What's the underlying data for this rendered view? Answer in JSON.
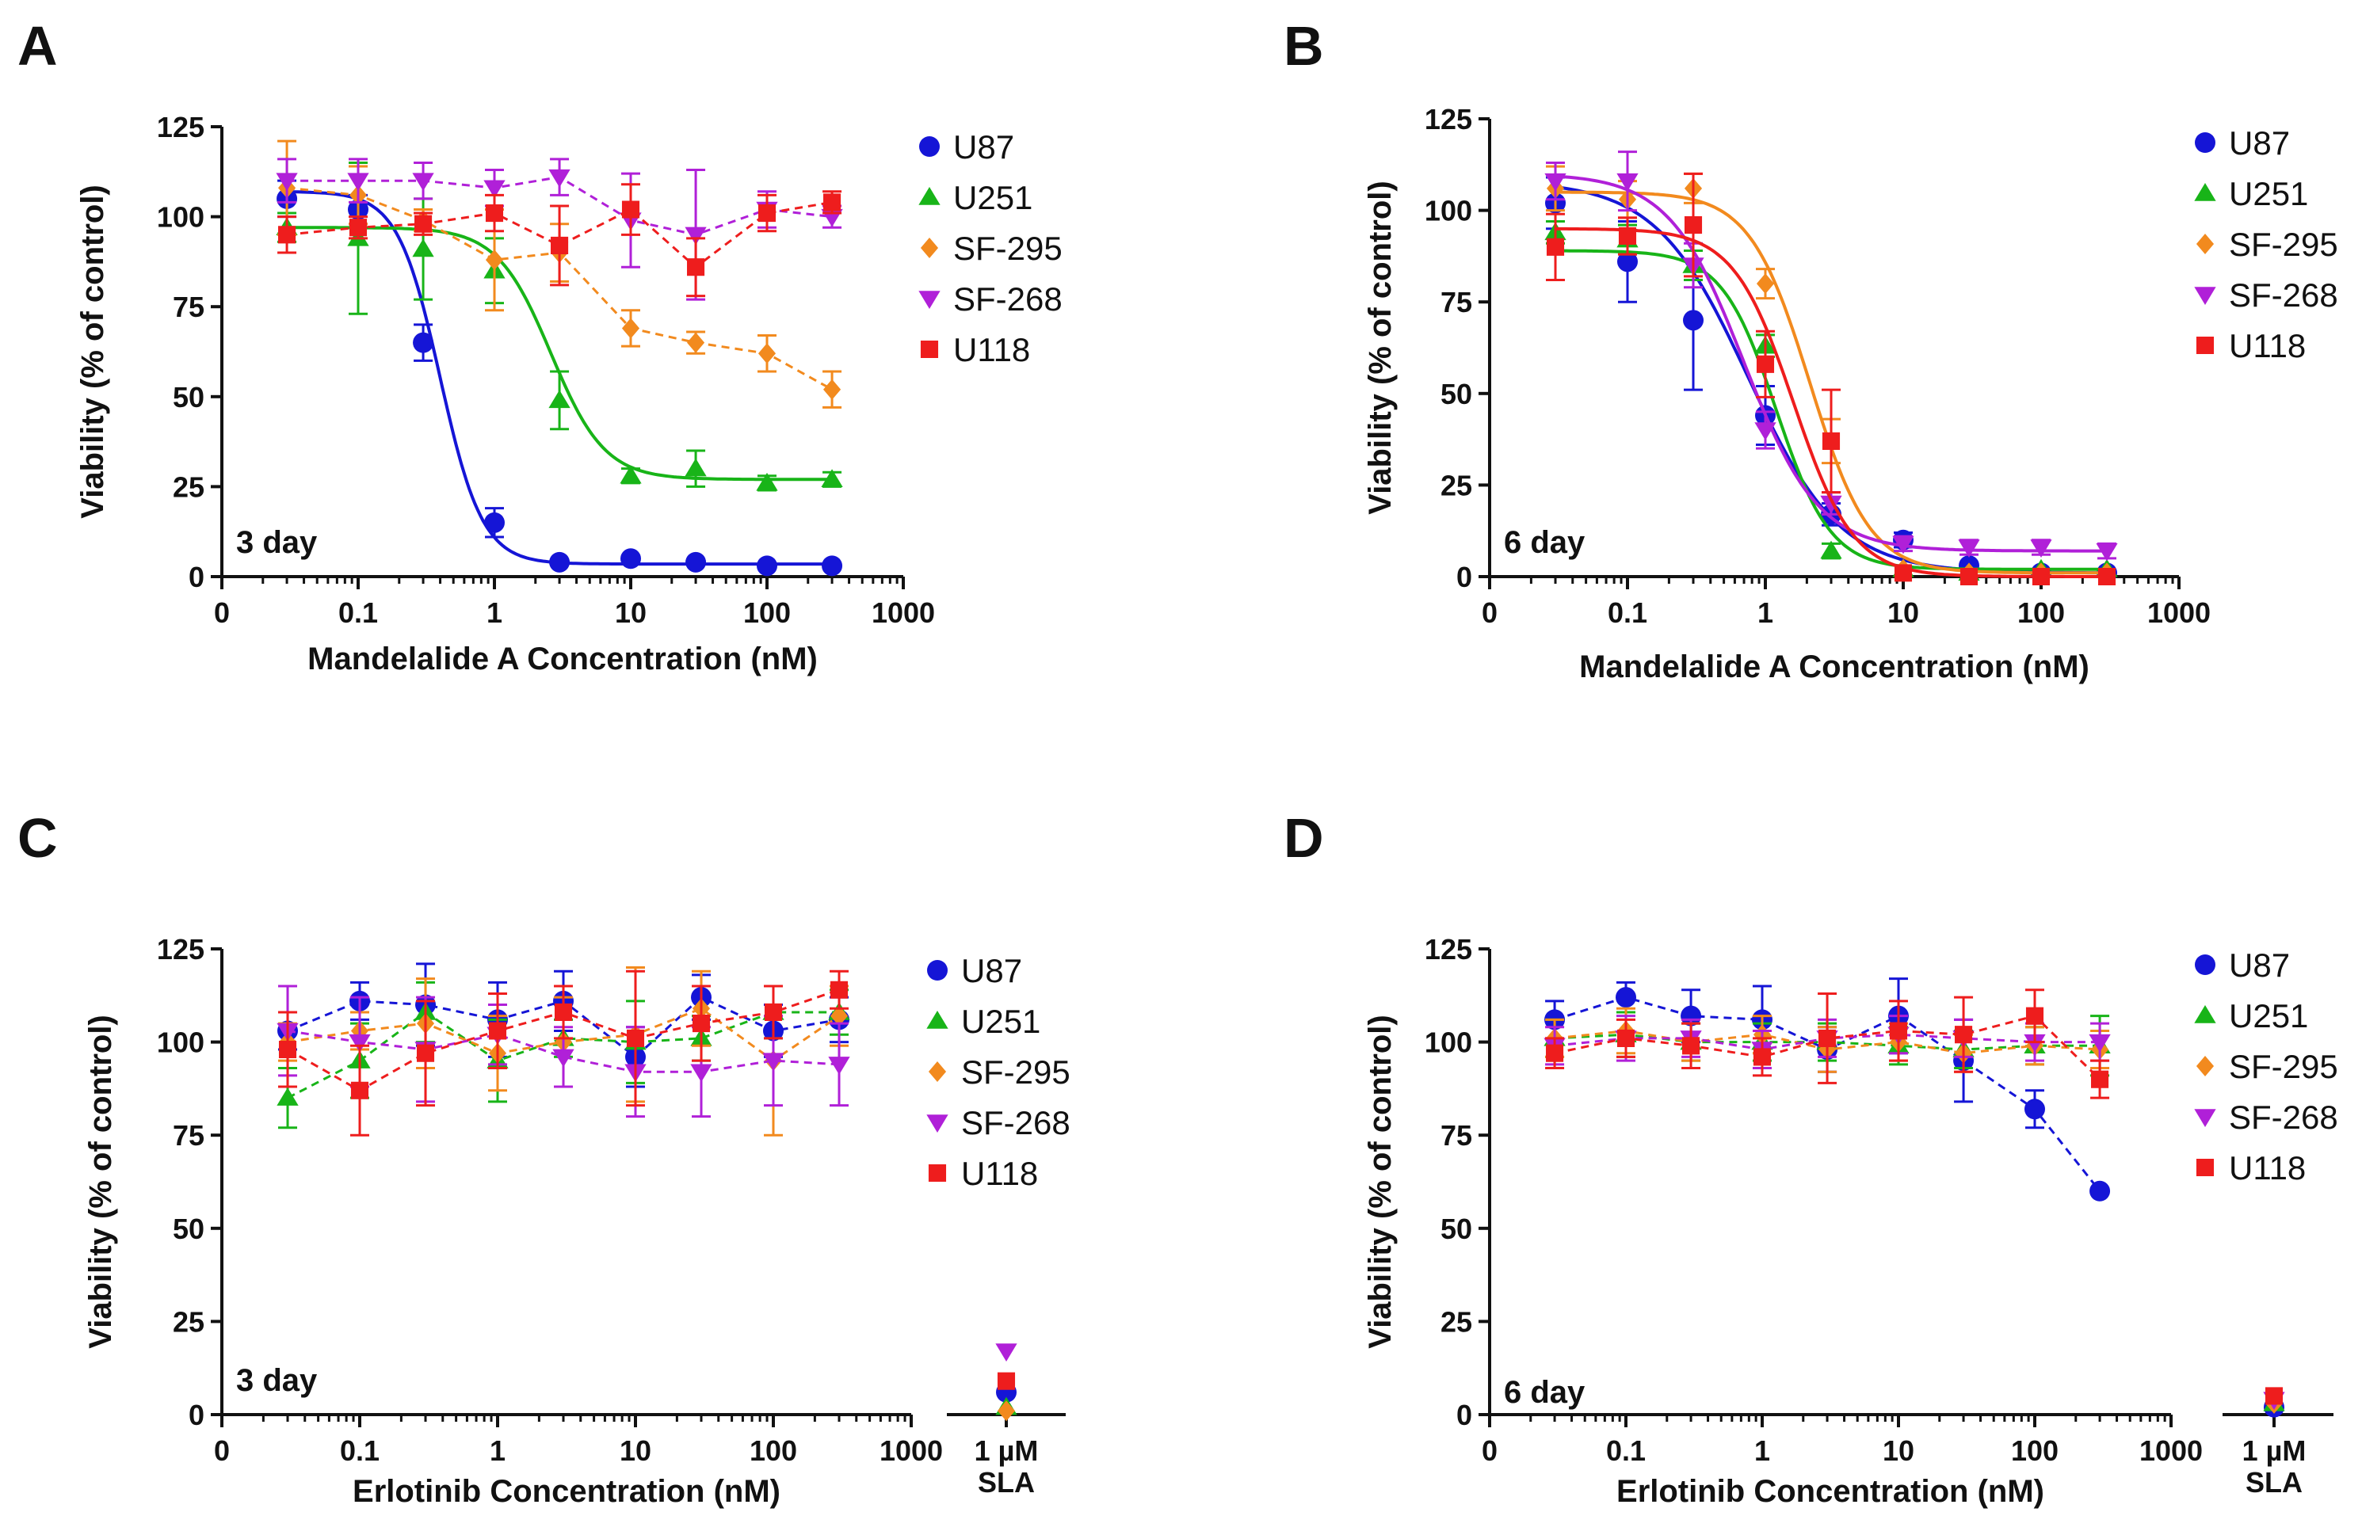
{
  "chart_data": [
    {
      "panel": "A",
      "type": "line",
      "xscale": "log",
      "xlabel": "Mandelalide A Concentration (nM)",
      "ylabel": "Viability (% of control)",
      "annotation": "3 day",
      "xtick_labels": [
        "0",
        "0.1",
        "1",
        "10",
        "100",
        "1000"
      ],
      "ytick_labels": [
        "0",
        "25",
        "50",
        "75",
        "100",
        "125"
      ],
      "ylim": [
        0,
        125
      ],
      "legend_position": "top-right",
      "x": [
        0.03,
        0.1,
        0.3,
        1,
        3,
        10,
        30,
        100,
        300
      ],
      "series": [
        {
          "name": "U87",
          "color": "#1515d6",
          "marker": "circle",
          "fit": "solid",
          "values": [
            105,
            102,
            65,
            15,
            4,
            5,
            4,
            3,
            3
          ],
          "errors": [
            5,
            4,
            5,
            4,
            1,
            1,
            1,
            1,
            1
          ],
          "fit_params": {
            "top": 107,
            "bottom": 3.5,
            "ic50": 0.4,
            "hill": 2.8
          }
        },
        {
          "name": "U251",
          "color": "#18b418",
          "marker": "triangle-up",
          "fit": "solid",
          "values": [
            97,
            94,
            91,
            85,
            49,
            28,
            30,
            26,
            27
          ],
          "errors": [
            4,
            21,
            14,
            9,
            8,
            2,
            5,
            2,
            2
          ],
          "fit_params": {
            "top": 97,
            "bottom": 27,
            "ic50": 2.6,
            "hill": 2.2
          }
        },
        {
          "name": "SF-295",
          "color": "#f28a1e",
          "marker": "diamond",
          "fit": "dashed",
          "values": [
            108,
            106,
            99,
            88,
            90,
            69,
            65,
            62,
            52
          ],
          "errors": [
            13,
            8,
            3,
            14,
            8,
            5,
            3,
            5,
            5
          ]
        },
        {
          "name": "SF-268",
          "color": "#b020d8",
          "marker": "triangle-down",
          "fit": "dashed",
          "values": [
            110,
            110,
            110,
            108,
            111,
            99,
            95,
            102,
            100
          ],
          "errors": [
            6,
            6,
            5,
            5,
            5,
            13,
            18,
            5,
            3
          ]
        },
        {
          "name": "U118",
          "color": "#ee1d1d",
          "marker": "square",
          "fit": "dashed",
          "values": [
            95,
            97,
            98,
            101,
            92,
            102,
            86,
            101,
            104
          ],
          "errors": [
            5,
            3,
            3,
            5,
            11,
            7,
            8,
            5,
            3
          ]
        }
      ]
    },
    {
      "panel": "B",
      "type": "line",
      "xscale": "log",
      "xlabel": "Mandelalide A Concentration (nM)",
      "ylabel": "Viability (% of control)",
      "annotation": "6 day",
      "xtick_labels": [
        "0",
        "0.1",
        "1",
        "10",
        "100",
        "1000"
      ],
      "ytick_labels": [
        "0",
        "25",
        "50",
        "75",
        "100",
        "125"
      ],
      "ylim": [
        0,
        125
      ],
      "legend_position": "top-right",
      "x": [
        0.03,
        0.1,
        0.3,
        1,
        3,
        10,
        30,
        100,
        300
      ],
      "series": [
        {
          "name": "U87",
          "color": "#1515d6",
          "marker": "circle",
          "fit": "solid",
          "values": [
            102,
            86,
            70,
            44,
            17,
            10,
            3,
            1,
            1
          ],
          "errors": [
            7,
            11,
            19,
            8,
            3,
            2,
            1,
            1,
            1
          ],
          "fit_params": {
            "top": 108,
            "bottom": 1,
            "ic50": 0.75,
            "hill": 1.3
          }
        },
        {
          "name": "U251",
          "color": "#18b418",
          "marker": "triangle-up",
          "fit": "solid",
          "values": [
            94,
            92,
            85,
            63,
            7,
            2,
            1,
            2,
            2
          ],
          "errors": [
            3,
            4,
            4,
            3,
            2,
            1,
            1,
            1,
            1
          ],
          "fit_params": {
            "top": 89,
            "bottom": 2,
            "ic50": 1.2,
            "hill": 2.2
          }
        },
        {
          "name": "SF-295",
          "color": "#f28a1e",
          "marker": "diamond",
          "fit": "solid",
          "values": [
            106,
            103,
            106,
            80,
            37,
            2,
            1,
            1,
            1
          ],
          "errors": [
            6,
            5,
            4,
            4,
            6,
            1,
            1,
            1,
            1
          ],
          "fit_params": {
            "top": 105,
            "bottom": 1,
            "ic50": 2.1,
            "hill": 2.0
          }
        },
        {
          "name": "SF-268",
          "color": "#b020d8",
          "marker": "triangle-down",
          "fit": "solid",
          "values": [
            108,
            108,
            85,
            40,
            20,
            9,
            8,
            8,
            7
          ],
          "errors": [
            5,
            8,
            6,
            5,
            3,
            2,
            2,
            2,
            2
          ],
          "fit_params": {
            "top": 110,
            "bottom": 7,
            "ic50": 0.7,
            "hill": 1.6
          }
        },
        {
          "name": "U118",
          "color": "#ee1d1d",
          "marker": "square",
          "fit": "solid",
          "values": [
            90,
            93,
            96,
            58,
            37,
            1,
            0,
            0,
            0
          ],
          "errors": [
            9,
            5,
            14,
            9,
            14,
            1,
            1,
            1,
            1
          ],
          "fit_params": {
            "top": 95,
            "bottom": 0,
            "ic50": 1.6,
            "hill": 2.0
          }
        }
      ]
    },
    {
      "panel": "C",
      "type": "line",
      "xscale": "log",
      "xlabel": "Erlotinib Concentration (nM)",
      "ylabel": "Viability (% of control)",
      "annotation": "3 day",
      "extra_category": [
        "1 µM",
        "SLA"
      ],
      "xtick_labels": [
        "0",
        "0.1",
        "1",
        "10",
        "100",
        "1000"
      ],
      "ytick_labels": [
        "0",
        "25",
        "50",
        "75",
        "100",
        "125"
      ],
      "ylim": [
        0,
        125
      ],
      "legend_position": "top-right",
      "x": [
        0.03,
        0.1,
        0.3,
        1,
        3,
        10,
        30,
        100,
        300
      ],
      "series": [
        {
          "name": "U87",
          "color": "#1515d6",
          "marker": "circle",
          "fit": "dashed",
          "values": [
            103,
            111,
            110,
            106,
            111,
            96,
            112,
            103,
            106
          ],
          "errors": [
            5,
            5,
            11,
            10,
            8,
            8,
            6,
            7,
            6
          ],
          "sla": 6
        },
        {
          "name": "U251",
          "color": "#18b418",
          "marker": "triangle-up",
          "fit": "dashed",
          "values": [
            85,
            95,
            108,
            95,
            101,
            100,
            101,
            108,
            108
          ],
          "errors": [
            8,
            10,
            8,
            11,
            5,
            11,
            6,
            7,
            6
          ],
          "sla": 2
        },
        {
          "name": "SF-295",
          "color": "#f28a1e",
          "marker": "diamond",
          "fit": "dashed",
          "values": [
            100,
            103,
            105,
            97,
            100,
            102,
            109,
            95,
            107
          ],
          "errors": [
            5,
            5,
            12,
            10,
            12,
            18,
            10,
            20,
            8
          ],
          "sla": 1
        },
        {
          "name": "SF-268",
          "color": "#b020d8",
          "marker": "triangle-down",
          "fit": "dashed",
          "values": [
            103,
            100,
            98,
            102,
            96,
            92,
            92,
            95,
            94
          ],
          "errors": [
            12,
            12,
            14,
            8,
            8,
            12,
            12,
            12,
            11
          ],
          "sla": 17
        },
        {
          "name": "U118",
          "color": "#ee1d1d",
          "marker": "square",
          "fit": "dashed",
          "values": [
            98,
            87,
            97,
            103,
            108,
            101,
            105,
            108,
            114
          ],
          "errors": [
            10,
            12,
            14,
            10,
            7,
            18,
            10,
            7,
            5
          ],
          "sla": 9
        }
      ]
    },
    {
      "panel": "D",
      "type": "line",
      "xscale": "log",
      "xlabel": "Erlotinib Concentration (nM)",
      "ylabel": "Viability (% of control)",
      "annotation": "6 day",
      "extra_category": [
        "1 µM",
        "SLA"
      ],
      "xtick_labels": [
        "0",
        "0.1",
        "1",
        "10",
        "100",
        "1000"
      ],
      "ytick_labels": [
        "0",
        "25",
        "50",
        "75",
        "100",
        "125"
      ],
      "ylim": [
        0,
        125
      ],
      "legend_position": "top-right",
      "x": [
        0.03,
        0.1,
        0.3,
        1,
        3,
        10,
        30,
        100,
        300
      ],
      "series": [
        {
          "name": "U87",
          "color": "#1515d6",
          "marker": "circle",
          "fit": "dashed",
          "values": [
            106,
            112,
            107,
            106,
            98,
            107,
            95,
            82,
            60
          ],
          "errors": [
            5,
            4,
            7,
            9,
            6,
            10,
            11,
            5,
            1
          ],
          "sla": 2
        },
        {
          "name": "U251",
          "color": "#18b418",
          "marker": "triangle-up",
          "fit": "dashed",
          "values": [
            101,
            102,
            100,
            100,
            100,
            99,
            98,
            99,
            99
          ],
          "errors": [
            5,
            6,
            5,
            5,
            5,
            5,
            5,
            5,
            8
          ],
          "sla": 3
        },
        {
          "name": "SF-295",
          "color": "#f28a1e",
          "marker": "diamond",
          "fit": "dashed",
          "values": [
            101,
            103,
            100,
            102,
            98,
            100,
            97,
            99,
            98
          ],
          "errors": [
            5,
            6,
            5,
            5,
            6,
            5,
            5,
            5,
            5
          ],
          "sla": 3
        },
        {
          "name": "SF-268",
          "color": "#b020d8",
          "marker": "triangle-down",
          "fit": "dashed",
          "values": [
            99,
            101,
            101,
            98,
            101,
            102,
            101,
            100,
            100
          ],
          "errors": [
            5,
            6,
            5,
            5,
            5,
            5,
            5,
            5,
            5
          ],
          "sla": 4
        },
        {
          "name": "U118",
          "color": "#ee1d1d",
          "marker": "square",
          "fit": "dashed",
          "values": [
            97,
            101,
            99,
            96,
            101,
            103,
            102,
            107,
            90
          ],
          "errors": [
            4,
            5,
            6,
            5,
            12,
            8,
            10,
            7,
            5
          ],
          "sla": 5
        }
      ]
    }
  ]
}
